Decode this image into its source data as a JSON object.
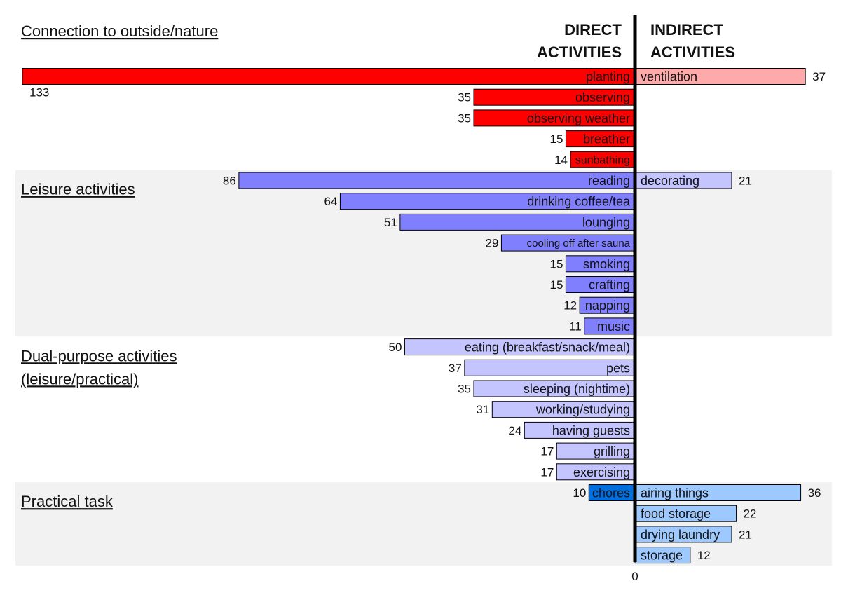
{
  "chart_data": {
    "type": "bar",
    "orientation": "horizontal-diverging",
    "headers": {
      "direct_line1": "DIRECT",
      "direct_line2": "ACTIVITIES",
      "indirect_line1": "INDIRECT",
      "indirect_line2": "ACTIVITIES"
    },
    "axis_zero_label": "0",
    "xlim": [
      -133,
      37
    ],
    "groups": [
      {
        "name": "Connection to outside/nature",
        "label_lines": [
          "Connection to outside/nature"
        ],
        "shaded": false,
        "direct_color": "#ff0000",
        "indirect_color": "#ffaaaa",
        "rows": [
          {
            "direct": {
              "label": "planting",
              "value": 133
            },
            "indirect": {
              "label": "ventilation",
              "value": 37
            }
          },
          {
            "direct": {
              "label": "observing",
              "value": 35
            }
          },
          {
            "direct": {
              "label": "observing weather",
              "value": 35
            }
          },
          {
            "direct": {
              "label": "breather",
              "value": 15
            }
          },
          {
            "direct": {
              "label": "sunbathing",
              "value": 14
            }
          }
        ]
      },
      {
        "name": "Leisure activities",
        "label_lines": [
          "Leisure activities"
        ],
        "shaded": true,
        "direct_color": "#8080ff",
        "indirect_color": "#c4c4ff",
        "rows": [
          {
            "direct": {
              "label": "reading",
              "value": 86
            },
            "indirect": {
              "label": "decorating",
              "value": 21
            }
          },
          {
            "direct": {
              "label": "drinking coffee/tea",
              "value": 64
            }
          },
          {
            "direct": {
              "label": "lounging",
              "value": 51
            }
          },
          {
            "direct": {
              "label": "cooling off after sauna",
              "value": 29
            }
          },
          {
            "direct": {
              "label": "smoking",
              "value": 15
            }
          },
          {
            "direct": {
              "label": "crafting",
              "value": 15
            }
          },
          {
            "direct": {
              "label": "napping",
              "value": 12
            }
          },
          {
            "direct": {
              "label": "music",
              "value": 11
            }
          }
        ]
      },
      {
        "name": "Dual-purpose activities (leisure/practical)",
        "label_lines": [
          "Dual-purpose activities",
          "(leisure/practical)"
        ],
        "shaded": false,
        "direct_color": "#c4c4ff",
        "indirect_color": "#c4c4ff",
        "rows": [
          {
            "direct": {
              "label": "eating (breakfast/snack/meal)",
              "value": 50
            }
          },
          {
            "direct": {
              "label": "pets",
              "value": 37
            }
          },
          {
            "direct": {
              "label": "sleeping (nightime)",
              "value": 35
            }
          },
          {
            "direct": {
              "label": "working/studying",
              "value": 31
            }
          },
          {
            "direct": {
              "label": "having guests",
              "value": 24
            }
          },
          {
            "direct": {
              "label": "grilling",
              "value": 17
            }
          },
          {
            "direct": {
              "label": "exercising",
              "value": 17
            }
          }
        ]
      },
      {
        "name": "Practical task",
        "label_lines": [
          "Practical task"
        ],
        "shaded": true,
        "direct_color": "#0070e0",
        "indirect_color": "#9dc9ff",
        "rows": [
          {
            "direct": {
              "label": "chores",
              "value": 10
            },
            "indirect": {
              "label": "airing things",
              "value": 36
            }
          },
          {
            "indirect": {
              "label": "food storage",
              "value": 22
            }
          },
          {
            "indirect": {
              "label": "drying laundry",
              "value": 21
            }
          },
          {
            "indirect": {
              "label": "storage",
              "value": 12
            }
          }
        ]
      }
    ]
  }
}
